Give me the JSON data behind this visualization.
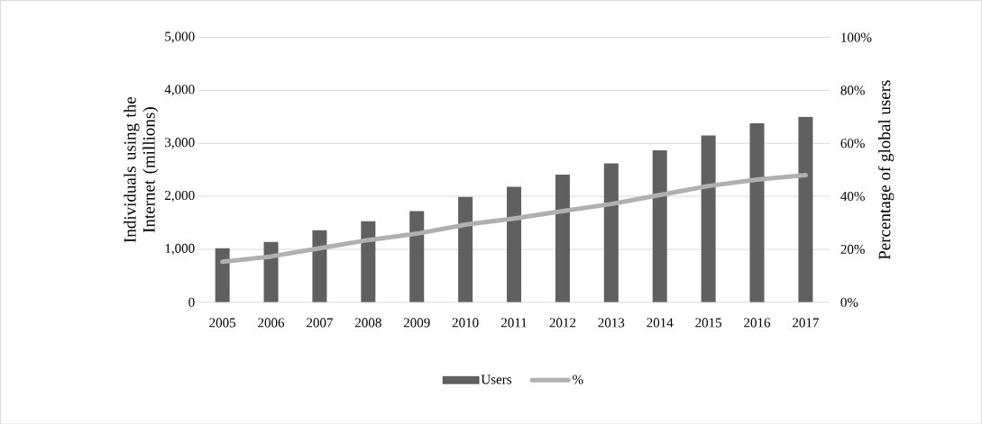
{
  "chart_data": {
    "type": "bar",
    "categories": [
      "2005",
      "2006",
      "2007",
      "2008",
      "2009",
      "2010",
      "2011",
      "2012",
      "2013",
      "2014",
      "2015",
      "2016",
      "2017"
    ],
    "ylabel": "Individuals using the Internet (millions)",
    "y2label": "Percentage of global users",
    "series": [
      {
        "name": "Users",
        "color": "#606060",
        "values": [
          1020,
          1140,
          1360,
          1530,
          1720,
          1990,
          2180,
          2410,
          2620,
          2870,
          3150,
          3380,
          3500
        ]
      },
      {
        "name": "%",
        "type": "line",
        "axis": "y2",
        "color": "#b0b0b0",
        "values": [
          15.3,
          17.3,
          20.4,
          23.5,
          25.9,
          29.3,
          31.6,
          34.4,
          37.1,
          40.5,
          43.9,
          46.3,
          48.0
        ]
      }
    ],
    "ylim": [
      0,
      5000
    ],
    "yticks": [
      {
        "value": 0,
        "label": "0"
      },
      {
        "value": 1000,
        "label": "1,000"
      },
      {
        "value": 2000,
        "label": "2,000"
      },
      {
        "value": 3000,
        "label": "3,000"
      },
      {
        "value": 4000,
        "label": "4,000"
      },
      {
        "value": 5000,
        "label": "5,000"
      }
    ],
    "y2lim": [
      0,
      100
    ],
    "y2ticks": [
      {
        "value": 0,
        "label": "0%"
      },
      {
        "value": 20,
        "label": "20%"
      },
      {
        "value": 40,
        "label": "40%"
      },
      {
        "value": 60,
        "label": "60%"
      },
      {
        "value": 80,
        "label": "80%"
      },
      {
        "value": 100,
        "label": "100%"
      }
    ],
    "grid": "y",
    "legend": "bottom",
    "marker": "none",
    "line_style": "solid"
  }
}
